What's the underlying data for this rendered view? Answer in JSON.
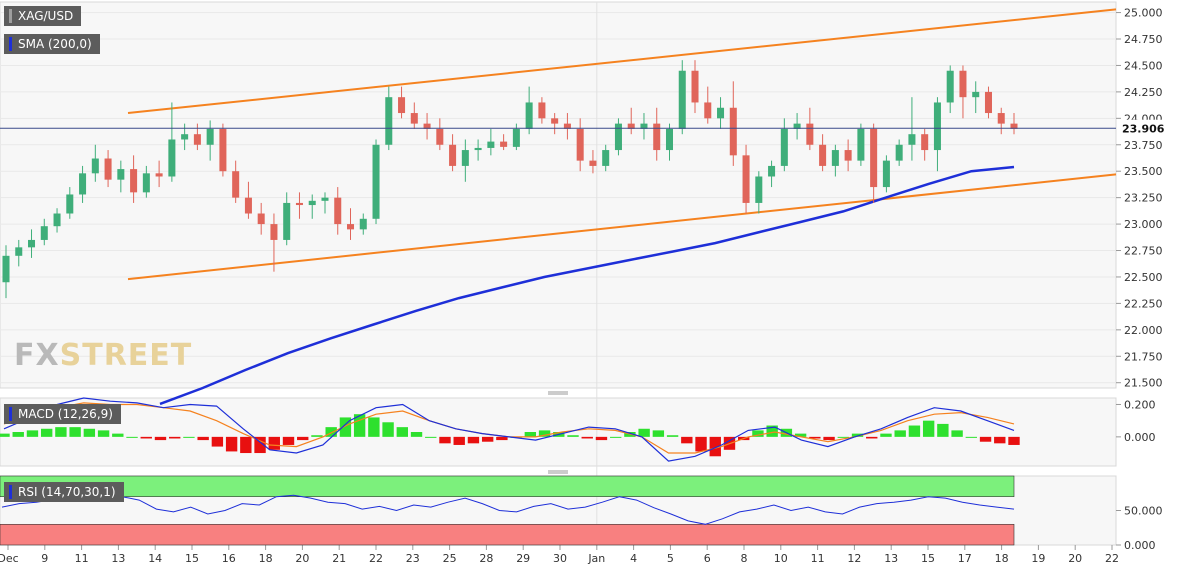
{
  "chart_data": [
    {
      "type": "candlestick",
      "symbol": "XAG/USD",
      "indicator_label": "SMA (200,0)",
      "last_price": "23.906",
      "ylim": [
        21.45,
        25.1
      ],
      "y_ticks": [
        "25.000",
        "24.750",
        "24.500",
        "24.250",
        "24.000",
        "23.750",
        "23.500",
        "23.250",
        "23.000",
        "22.750",
        "22.500",
        "22.250",
        "22.000",
        "21.750",
        "21.500"
      ],
      "x_ticks": [
        "Dec",
        "9",
        "11",
        "13",
        "14",
        "15",
        "16",
        "18",
        "20",
        "21",
        "22",
        "23",
        "25",
        "28",
        "29",
        "30",
        "Jan",
        "4",
        "5",
        "6",
        "8",
        "10",
        "11",
        "12",
        "13",
        "15",
        "17",
        "18",
        "19",
        "20",
        "22"
      ],
      "ohlc": [
        [
          22.45,
          22.8,
          22.3,
          22.7
        ],
        [
          22.7,
          22.85,
          22.6,
          22.78
        ],
        [
          22.78,
          22.95,
          22.68,
          22.85
        ],
        [
          22.85,
          23.05,
          22.8,
          22.98
        ],
        [
          22.98,
          23.15,
          22.92,
          23.1
        ],
        [
          23.1,
          23.35,
          23.05,
          23.28
        ],
        [
          23.28,
          23.55,
          23.2,
          23.48
        ],
        [
          23.48,
          23.75,
          23.4,
          23.62
        ],
        [
          23.62,
          23.7,
          23.35,
          23.42
        ],
        [
          23.42,
          23.6,
          23.3,
          23.52
        ],
        [
          23.52,
          23.65,
          23.2,
          23.3
        ],
        [
          23.3,
          23.55,
          23.25,
          23.48
        ],
        [
          23.48,
          23.6,
          23.35,
          23.45
        ],
        [
          23.45,
          24.15,
          23.4,
          23.8
        ],
        [
          23.8,
          23.95,
          23.7,
          23.85
        ],
        [
          23.85,
          23.95,
          23.7,
          23.75
        ],
        [
          23.75,
          23.98,
          23.6,
          23.9
        ],
        [
          23.9,
          23.95,
          23.45,
          23.5
        ],
        [
          23.5,
          23.6,
          23.2,
          23.25
        ],
        [
          23.25,
          23.4,
          23.05,
          23.1
        ],
        [
          23.1,
          23.2,
          22.9,
          23.0
        ],
        [
          23.0,
          23.1,
          22.55,
          22.85
        ],
        [
          22.85,
          23.3,
          22.8,
          23.2
        ],
        [
          23.2,
          23.3,
          23.05,
          23.18
        ],
        [
          23.18,
          23.28,
          23.05,
          23.22
        ],
        [
          23.22,
          23.3,
          23.1,
          23.25
        ],
        [
          23.25,
          23.35,
          22.9,
          23.0
        ],
        [
          23.0,
          23.15,
          22.85,
          22.95
        ],
        [
          22.95,
          23.1,
          22.9,
          23.05
        ],
        [
          23.05,
          23.8,
          23.0,
          23.75
        ],
        [
          23.75,
          24.3,
          23.7,
          24.2
        ],
        [
          24.2,
          24.3,
          24.0,
          24.05
        ],
        [
          24.05,
          24.15,
          23.9,
          23.95
        ],
        [
          23.95,
          24.05,
          23.8,
          23.9
        ],
        [
          23.9,
          24.0,
          23.7,
          23.75
        ],
        [
          23.75,
          23.85,
          23.5,
          23.55
        ],
        [
          23.55,
          23.8,
          23.4,
          23.7
        ],
        [
          23.7,
          23.8,
          23.6,
          23.72
        ],
        [
          23.72,
          23.9,
          23.65,
          23.78
        ],
        [
          23.78,
          23.85,
          23.7,
          23.73
        ],
        [
          23.73,
          23.95,
          23.7,
          23.9
        ],
        [
          23.9,
          24.3,
          23.85,
          24.15
        ],
        [
          24.15,
          24.2,
          23.95,
          24.0
        ],
        [
          24.0,
          24.05,
          23.85,
          23.95
        ],
        [
          23.95,
          24.05,
          23.8,
          23.9
        ],
        [
          23.9,
          24.0,
          23.5,
          23.6
        ],
        [
          23.6,
          23.7,
          23.48,
          23.55
        ],
        [
          23.55,
          23.75,
          23.5,
          23.7
        ],
        [
          23.7,
          24.0,
          23.65,
          23.95
        ],
        [
          23.95,
          24.1,
          23.85,
          23.9
        ],
        [
          23.9,
          24.05,
          23.8,
          23.95
        ],
        [
          23.95,
          24.1,
          23.6,
          23.7
        ],
        [
          23.7,
          23.95,
          23.6,
          23.9
        ],
        [
          23.9,
          24.55,
          23.85,
          24.45
        ],
        [
          24.45,
          24.55,
          24.05,
          24.15
        ],
        [
          24.15,
          24.3,
          23.95,
          24.0
        ],
        [
          24.0,
          24.2,
          23.9,
          24.1
        ],
        [
          24.1,
          24.35,
          23.55,
          23.65
        ],
        [
          23.65,
          23.75,
          23.1,
          23.2
        ],
        [
          23.2,
          23.5,
          23.1,
          23.45
        ],
        [
          23.45,
          23.6,
          23.35,
          23.55
        ],
        [
          23.55,
          24.0,
          23.5,
          23.9
        ],
        [
          23.9,
          24.05,
          23.8,
          23.95
        ],
        [
          23.95,
          24.1,
          23.7,
          23.75
        ],
        [
          23.75,
          23.85,
          23.5,
          23.55
        ],
        [
          23.55,
          23.75,
          23.45,
          23.7
        ],
        [
          23.7,
          23.8,
          23.5,
          23.6
        ],
        [
          23.6,
          23.95,
          23.55,
          23.9
        ],
        [
          23.9,
          23.95,
          23.2,
          23.35
        ],
        [
          23.35,
          23.65,
          23.3,
          23.6
        ],
        [
          23.6,
          23.8,
          23.55,
          23.75
        ],
        [
          23.75,
          24.2,
          23.6,
          23.85
        ],
        [
          23.85,
          23.9,
          23.6,
          23.7
        ],
        [
          23.7,
          24.2,
          23.5,
          24.15
        ],
        [
          24.15,
          24.5,
          24.05,
          24.45
        ],
        [
          24.45,
          24.5,
          24.0,
          24.2
        ],
        [
          24.2,
          24.35,
          24.05,
          24.25
        ],
        [
          24.25,
          24.3,
          24.0,
          24.05
        ],
        [
          24.05,
          24.1,
          23.85,
          23.95
        ],
        [
          23.95,
          24.05,
          23.85,
          23.9
        ]
      ],
      "sma200": [
        21.3,
        21.45,
        21.62,
        21.78,
        21.92,
        22.05,
        22.18,
        22.3,
        22.4,
        22.5,
        22.58,
        22.66,
        22.74,
        22.82,
        22.92,
        23.02,
        23.12,
        23.25,
        23.38,
        23.5,
        23.54
      ],
      "channel_upper": [
        [
          24.05
        ],
        [
          25.03
        ]
      ],
      "channel_lower": [
        [
          22.48
        ],
        [
          23.47
        ]
      ]
    },
    {
      "type": "histogram+line",
      "indicator_label": "MACD (12,26,9)",
      "y_ticks": [
        "0.200",
        "0.000"
      ],
      "ylim": [
        -0.18,
        0.24
      ],
      "histogram": [
        0.02,
        0.03,
        0.04,
        0.05,
        0.06,
        0.06,
        0.05,
        0.04,
        0.02,
        0.0,
        -0.01,
        -0.02,
        -0.01,
        0.0,
        -0.02,
        -0.06,
        -0.09,
        -0.1,
        -0.1,
        -0.08,
        -0.05,
        -0.02,
        0.01,
        0.06,
        0.12,
        0.14,
        0.12,
        0.09,
        0.06,
        0.03,
        0.0,
        -0.04,
        -0.05,
        -0.04,
        -0.03,
        -0.02,
        0.0,
        0.03,
        0.04,
        0.03,
        0.01,
        -0.01,
        -0.02,
        0.0,
        0.03,
        0.05,
        0.04,
        0.01,
        -0.04,
        -0.09,
        -0.12,
        -0.08,
        -0.02,
        0.04,
        0.07,
        0.05,
        0.02,
        -0.01,
        -0.02,
        0.0,
        0.02,
        -0.01,
        0.02,
        0.04,
        0.07,
        0.1,
        0.08,
        0.04,
        0.0,
        -0.03,
        -0.04,
        -0.05
      ],
      "macd": [
        0.05,
        0.12,
        0.2,
        0.24,
        0.22,
        0.21,
        0.18,
        0.2,
        0.19,
        0.05,
        -0.08,
        -0.1,
        -0.05,
        0.1,
        0.18,
        0.2,
        0.1,
        0.05,
        0.02,
        0.0,
        -0.02,
        0.02,
        0.06,
        0.05,
        0.0,
        -0.15,
        -0.12,
        -0.05,
        0.04,
        0.06,
        -0.02,
        -0.06,
        0.0,
        0.05,
        0.12,
        0.18,
        0.16,
        0.1,
        0.04
      ],
      "signal": [
        0.08,
        0.13,
        0.18,
        0.21,
        0.2,
        0.2,
        0.18,
        0.16,
        0.1,
        0.02,
        -0.05,
        -0.06,
        0.0,
        0.08,
        0.14,
        0.16,
        0.1,
        0.05,
        0.02,
        0.0,
        0.0,
        0.03,
        0.05,
        0.04,
        0.0,
        -0.1,
        -0.1,
        -0.06,
        0.0,
        0.03,
        0.0,
        -0.03,
        0.0,
        0.04,
        0.1,
        0.14,
        0.15,
        0.12,
        0.08
      ]
    },
    {
      "type": "line",
      "indicator_label": "RSI (14,70,30,1)",
      "y_ticks": [
        "50.000",
        "0.000"
      ],
      "ylim": [
        0,
        100
      ],
      "overbought": 70,
      "oversold": 30,
      "rsi": [
        55,
        60,
        62,
        66,
        64,
        68,
        72,
        70,
        65,
        52,
        48,
        55,
        45,
        50,
        60,
        58,
        70,
        72,
        68,
        62,
        60,
        52,
        56,
        50,
        58,
        55,
        62,
        68,
        60,
        50,
        48,
        56,
        60,
        52,
        55,
        62,
        70,
        65,
        54,
        45,
        35,
        30,
        38,
        48,
        52,
        58,
        50,
        55,
        48,
        45,
        55,
        60,
        62,
        65,
        70,
        68,
        62,
        58,
        55,
        52
      ]
    }
  ]
}
